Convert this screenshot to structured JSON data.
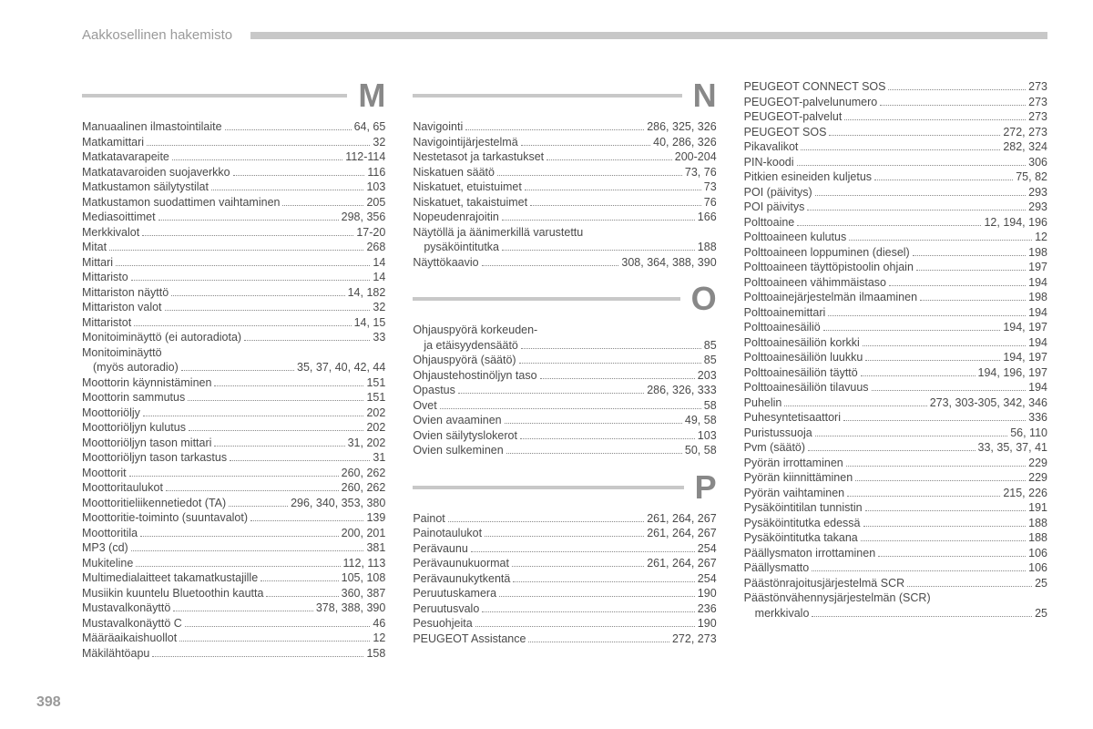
{
  "header": "Aakkosellinen hakemisto",
  "pageNumber": "398",
  "colors": {
    "text": "#4a4a4a",
    "muted": "#9a9a9a",
    "rule": "#c8c8c8",
    "letter": "#888888",
    "background": "#ffffff"
  },
  "columns": [
    {
      "sections": [
        {
          "letter": "M",
          "entries": [
            {
              "label": "Manuaalinen ilmastointilaite",
              "pages": "64, 65"
            },
            {
              "label": "Matkamittari",
              "pages": "32"
            },
            {
              "label": "Matkatavarapeite",
              "pages": "112-114"
            },
            {
              "label": "Matkatavaroiden suojaverkko",
              "pages": "116"
            },
            {
              "label": "Matkustamon säilytystilat",
              "pages": "103"
            },
            {
              "label": "Matkustamon suodattimen vaihtaminen",
              "pages": "205"
            },
            {
              "label": "Mediasoittimet",
              "pages": "298, 356"
            },
            {
              "label": "Merkkivalot",
              "pages": "17-20"
            },
            {
              "label": "Mitat",
              "pages": "268"
            },
            {
              "label": "Mittari",
              "pages": "14"
            },
            {
              "label": "Mittaristo",
              "pages": "14"
            },
            {
              "label": "Mittariston näyttö",
              "pages": "14, 182"
            },
            {
              "label": "Mittariston valot",
              "pages": "32"
            },
            {
              "label": "Mittaristot",
              "pages": "14, 15"
            },
            {
              "label": "Monitoiminäyttö (ei autoradiota)",
              "pages": "33"
            },
            {
              "label": "Monitoiminäyttö",
              "pages": "",
              "nodots": true
            },
            {
              "label": "(myös autoradio)",
              "pages": "35, 37, 40, 42, 44",
              "indent": true
            },
            {
              "label": "Moottorin käynnistäminen",
              "pages": "151"
            },
            {
              "label": "Moottorin sammutus",
              "pages": "151"
            },
            {
              "label": "Moottoriöljy",
              "pages": "202"
            },
            {
              "label": "Moottoriöljyn kulutus",
              "pages": "202"
            },
            {
              "label": "Moottoriöljyn tason mittari",
              "pages": "31, 202"
            },
            {
              "label": "Moottoriöljyn tason tarkastus",
              "pages": "31"
            },
            {
              "label": "Moottorit",
              "pages": "260, 262"
            },
            {
              "label": "Moottoritaulukot",
              "pages": "260, 262"
            },
            {
              "label": "Moottoritieliikennetiedot (TA)",
              "pages": "296, 340, 353, 380"
            },
            {
              "label": "Moottoritie-toiminto (suuntavalot)",
              "pages": "139"
            },
            {
              "label": "Moottoritila",
              "pages": "200, 201"
            },
            {
              "label": "MP3 (cd)",
              "pages": "381"
            },
            {
              "label": "Mukiteline",
              "pages": "112, 113"
            },
            {
              "label": "Multimedialaitteet takamatkustajille",
              "pages": "105, 108"
            },
            {
              "label": "Musiikin kuuntelu Bluetoothin kautta",
              "pages": "360, 387"
            },
            {
              "label": "Mustavalkonäyttö",
              "pages": "378, 388, 390"
            },
            {
              "label": "Mustavalkonäyttö C",
              "pages": "46"
            },
            {
              "label": "Määräaikaishuollot",
              "pages": "12"
            },
            {
              "label": "Mäkilähtöapu",
              "pages": "158"
            }
          ]
        }
      ]
    },
    {
      "sections": [
        {
          "letter": "N",
          "entries": [
            {
              "label": "Navigointi",
              "pages": "286, 325, 326"
            },
            {
              "label": "Navigointijärjestelmä",
              "pages": "40, 286, 326"
            },
            {
              "label": "Nestetasot ja tarkastukset",
              "pages": "200-204"
            },
            {
              "label": "Niskatuen säätö",
              "pages": "73, 76"
            },
            {
              "label": "Niskatuet, etuistuimet",
              "pages": "73"
            },
            {
              "label": "Niskatuet, takaistuimet",
              "pages": "76"
            },
            {
              "label": "Nopeudenrajoitin",
              "pages": "166"
            },
            {
              "label": "Näytöllä ja äänimerkillä varustettu",
              "pages": "",
              "nodots": true
            },
            {
              "label": "pysäköintitutka",
              "pages": "188",
              "indent": true
            },
            {
              "label": "Näyttökaavio",
              "pages": "308, 364, 388, 390"
            }
          ]
        },
        {
          "letter": "O",
          "entries": [
            {
              "label": "Ohjauspyörä korkeuden-",
              "pages": "",
              "nodots": true
            },
            {
              "label": "ja etäisyydensäätö",
              "pages": "85",
              "indent": true
            },
            {
              "label": "Ohjauspyörä (säätö)",
              "pages": "85"
            },
            {
              "label": "Ohjaustehostinöljyn taso",
              "pages": "203"
            },
            {
              "label": "Opastus",
              "pages": "286, 326, 333"
            },
            {
              "label": "Ovet",
              "pages": "58"
            },
            {
              "label": "Ovien avaaminen",
              "pages": "49, 58"
            },
            {
              "label": "Ovien säilytyslokerot",
              "pages": "103"
            },
            {
              "label": "Ovien sulkeminen",
              "pages": "50, 58"
            }
          ]
        },
        {
          "letter": "P",
          "entries": [
            {
              "label": "Painot",
              "pages": "261, 264, 267"
            },
            {
              "label": "Painotaulukot",
              "pages": "261, 264, 267"
            },
            {
              "label": "Perävaunu",
              "pages": "254"
            },
            {
              "label": "Perävaunukuormat",
              "pages": "261, 264, 267"
            },
            {
              "label": "Perävaunukytkentä",
              "pages": "254"
            },
            {
              "label": "Peruutuskamera",
              "pages": "190"
            },
            {
              "label": "Peruutusvalo",
              "pages": "236"
            },
            {
              "label": "Pesuohjeita",
              "pages": "190"
            },
            {
              "label": "PEUGEOT Assistance",
              "pages": "272, 273"
            }
          ]
        }
      ]
    },
    {
      "sections": [
        {
          "letter": "",
          "entries": [
            {
              "label": "PEUGEOT CONNECT SOS",
              "pages": "273"
            },
            {
              "label": "PEUGEOT-palvelunumero",
              "pages": "273"
            },
            {
              "label": "PEUGEOT-palvelut",
              "pages": "273"
            },
            {
              "label": "PEUGEOT SOS",
              "pages": "272, 273"
            },
            {
              "label": "Pikavalikot",
              "pages": "282, 324"
            },
            {
              "label": "PIN-koodi",
              "pages": "306"
            },
            {
              "label": "Pitkien esineiden kuljetus",
              "pages": "75, 82"
            },
            {
              "label": "POI (päivitys)",
              "pages": "293"
            },
            {
              "label": "POI päivitys",
              "pages": "293"
            },
            {
              "label": "Polttoaine",
              "pages": "12, 194, 196"
            },
            {
              "label": "Polttoaineen kulutus",
              "pages": "12"
            },
            {
              "label": "Polttoaineen loppuminen (diesel)",
              "pages": "198"
            },
            {
              "label": "Polttoaineen täyttöpistoolin ohjain",
              "pages": "197"
            },
            {
              "label": "Polttoaineen vähimmäistaso",
              "pages": "194"
            },
            {
              "label": "Polttoainejärjestelmän ilmaaminen",
              "pages": "198"
            },
            {
              "label": "Polttoainemittari",
              "pages": "194"
            },
            {
              "label": "Polttoainesäiliö",
              "pages": "194, 197"
            },
            {
              "label": "Polttoainesäiliön korkki",
              "pages": "194"
            },
            {
              "label": "Polttoainesäiliön luukku",
              "pages": "194, 197"
            },
            {
              "label": "Polttoainesäiliön täyttö",
              "pages": "194, 196, 197"
            },
            {
              "label": "Polttoainesäiliön tilavuus",
              "pages": "194"
            },
            {
              "label": "Puhelin",
              "pages": "273, 303-305, 342, 346"
            },
            {
              "label": "Puhesyntetisaattori",
              "pages": "336"
            },
            {
              "label": "Puristussuoja",
              "pages": "56, 110"
            },
            {
              "label": "Pvm (säätö)",
              "pages": "33, 35, 37, 41"
            },
            {
              "label": "Pyörän irrottaminen",
              "pages": "229"
            },
            {
              "label": "Pyörän kiinnittäminen",
              "pages": "229"
            },
            {
              "label": "Pyörän vaihtaminen",
              "pages": "215, 226"
            },
            {
              "label": "Pysäköintitilan tunnistin",
              "pages": "191"
            },
            {
              "label": "Pysäköintitutka edessä",
              "pages": "188"
            },
            {
              "label": "Pysäköintitutka takana",
              "pages": "188"
            },
            {
              "label": "Päällysmaton irrottaminen",
              "pages": "106"
            },
            {
              "label": "Päällysmatto",
              "pages": "106"
            },
            {
              "label": "Päästönrajoitusjärjestelmä SCR",
              "pages": "25"
            },
            {
              "label": "Päästönvähennysjärjestelmän (SCR)",
              "pages": "",
              "nodots": true
            },
            {
              "label": "merkkivalo",
              "pages": "25",
              "indent": true
            }
          ]
        }
      ]
    }
  ]
}
